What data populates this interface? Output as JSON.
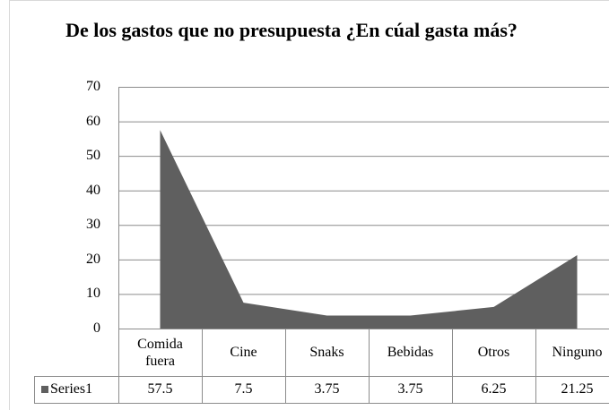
{
  "chart_data": {
    "type": "area",
    "title": "De los gastos que no presupuesta ¿En cúal gasta más?",
    "categories": [
      "Comida fuera",
      "Cine",
      "Snaks",
      "Bebidas",
      "Otros",
      "Ninguno"
    ],
    "series": [
      {
        "name": "Series1",
        "color": "#5f5f5f",
        "values": [
          57.5,
          7.5,
          3.75,
          3.75,
          6.25,
          21.25
        ]
      }
    ],
    "ylim": [
      0,
      70
    ],
    "yticks": [
      0,
      10,
      20,
      30,
      40,
      50,
      60,
      70
    ],
    "grid": true,
    "data_table": true
  }
}
